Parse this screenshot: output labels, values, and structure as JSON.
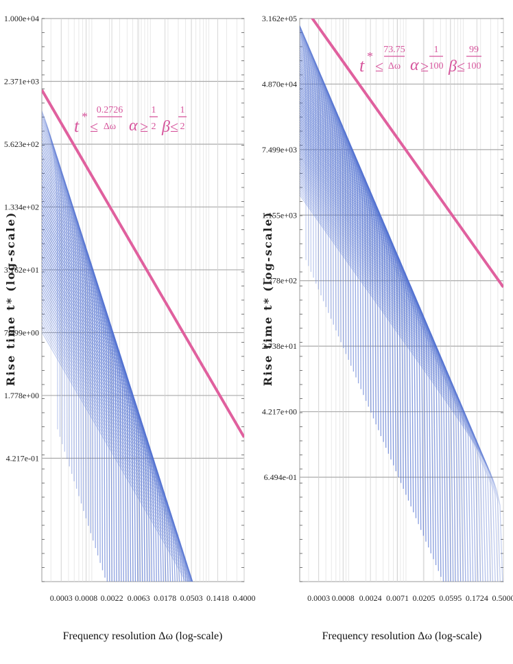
{
  "colors": {
    "band": "#4f6fd0",
    "bound": "#e0609e",
    "grid": "#cfcfcf",
    "major_grid": "#a9a9a9"
  },
  "chart_data": [
    {
      "type": "line",
      "title": "",
      "xlabel": "Frequency resolution Δω (log-scale)",
      "ylabel": "Rise time t* (log-scale)",
      "xscale": "log",
      "yscale": "log",
      "xlim": [
        0.00014,
        0.4
      ],
      "ylim": [
        0.025,
        10000
      ],
      "x_ticks": [
        "0.0003",
        "0.0008",
        "0.0022",
        "0.0063",
        "0.0178",
        "0.0503",
        "0.1418",
        "0.4000"
      ],
      "y_ticks": [
        "1.000e+04",
        "2.371e+03",
        "5.623e+02",
        "1.334e+02",
        "3.162e+01",
        "7.499e+00",
        "1.778e+00",
        "4.217e-01"
      ],
      "bound": {
        "name": "t* ≤ 0.2726/Δω",
        "coefficient": 0.2726,
        "alpha": "1/2",
        "beta": "1/2"
      },
      "annotation": {
        "t": "t",
        "star": "*",
        "le": "≤",
        "num": "0.2726",
        "den": "Δω",
        "alpha": "α",
        "ge": "≥",
        "a_num": "1",
        "a_den": "2",
        "beta": "β",
        "le2": "≤",
        "b_num": "1",
        "b_den": "2"
      },
      "curves": {
        "count": 70,
        "x_end_min": 0.00026,
        "x_end_max": 0.16,
        "slope": -1
      }
    },
    {
      "type": "line",
      "title": "",
      "xlabel": "Frequency resolution Δω (log-scale)",
      "ylabel": "Rise time t* (log-scale)",
      "xscale": "log",
      "yscale": "log",
      "xlim": [
        0.00014,
        0.5
      ],
      "ylim": [
        0.033,
        316200
      ],
      "x_ticks": [
        "0.0003",
        "0.0008",
        "0.0024",
        "0.0071",
        "0.0205",
        "0.0595",
        "0.1724",
        "0.5000"
      ],
      "y_ticks": [
        "3.162e+05",
        "4.870e+04",
        "7.499e+03",
        "1.155e+03",
        "1.778e+02",
        "2.738e+01",
        "4.217e+00",
        "6.494e-01"
      ],
      "bound": {
        "name": "t* ≤ 73.75/Δω",
        "coefficient": 73.75,
        "alpha": "1/100",
        "beta": "99/100"
      },
      "annotation": {
        "t": "t",
        "star": "*",
        "le": "≤",
        "num": "73.75",
        "den": "Δω",
        "alpha": "α",
        "ge": "≥",
        "a_num": "1",
        "a_den": "100",
        "beta": "β",
        "le2": "≤",
        "b_num": "99",
        "b_den": "100"
      },
      "curves": {
        "count": 80,
        "x_end_min": 0.00018,
        "x_end_max": 0.5,
        "slope": -1
      }
    }
  ]
}
